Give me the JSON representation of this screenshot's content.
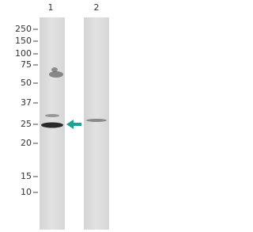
{
  "lanes": [
    "1",
    "2"
  ],
  "markers": [
    "250",
    "150",
    "100",
    "75",
    "50",
    "37",
    "25",
    "20",
    "15",
    "10"
  ]
}
